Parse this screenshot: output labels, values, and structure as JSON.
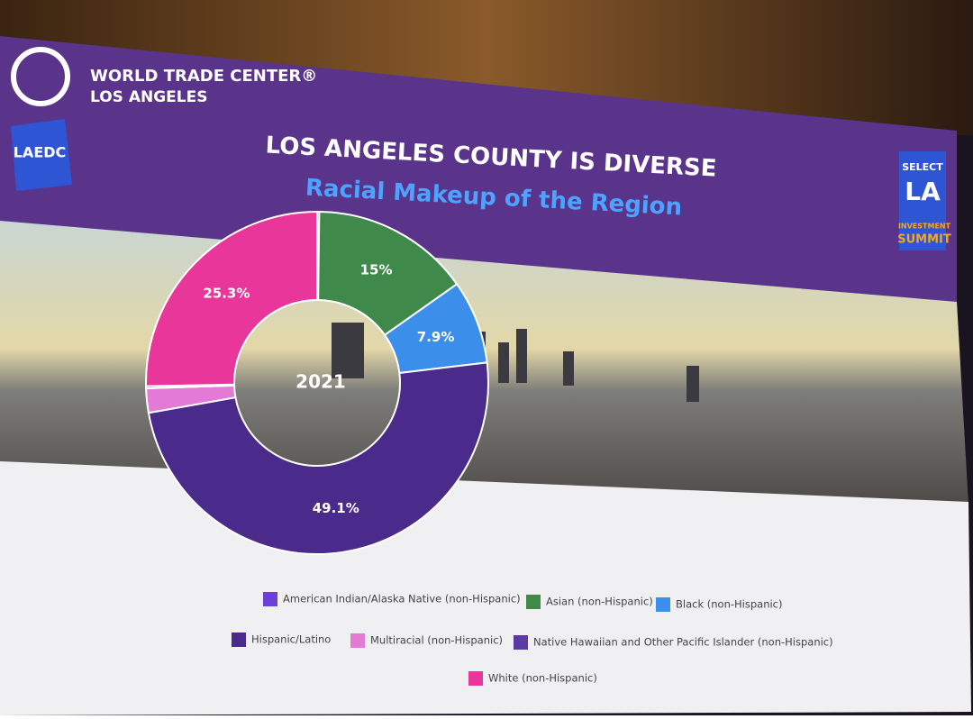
{
  "header": {
    "org": "WORLD TRADE CENTER®",
    "city": "LOS ANGELES",
    "left_badge": "LAEDC",
    "right_badge": {
      "line1": "SELECT",
      "line2": "LA",
      "line3": "INVESTMENT",
      "line4": "SUMMIT"
    }
  },
  "chart_data": {
    "type": "donut",
    "title": "LOS ANGELES COUNTY IS DIVERSE",
    "subtitle": "Racial Makeup of the Region",
    "center_label": "2021",
    "categories": [
      "American Indian/Alaska Native (non-Hispanic)",
      "Asian (non-Hispanic)",
      "Black (non-Hispanic)",
      "Hispanic/Latino",
      "Multiracial (non-Hispanic)",
      "Native Hawaiian and Other Pacific Islander (non-Hispanic)",
      "White (non-Hispanic)"
    ],
    "values": [
      0.2,
      15,
      7.9,
      49.1,
      2.3,
      0.2,
      25.3
    ],
    "value_labels": [
      null,
      "15%",
      "7.9%",
      "49.1%",
      null,
      null,
      "25.3%"
    ],
    "colors": [
      "#6b3fd6",
      "#3f8a4a",
      "#3b8fea",
      "#4a2a8a",
      "#e27ad6",
      "#5b3aa6",
      "#e8369b"
    ]
  }
}
